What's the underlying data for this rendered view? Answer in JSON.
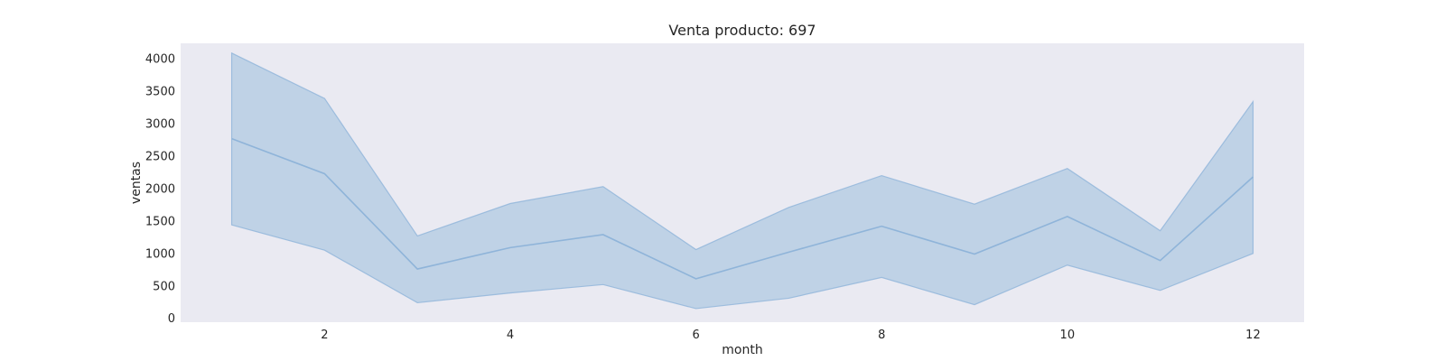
{
  "chart_data": {
    "type": "line",
    "title": "Venta producto: 697",
    "xlabel": "month",
    "ylabel": "ventas",
    "x": [
      1,
      2,
      3,
      4,
      5,
      6,
      7,
      8,
      9,
      10,
      11,
      12
    ],
    "series": [
      {
        "values": [
          2770,
          2230,
          760,
          1090,
          1290,
          610,
          1020,
          1420,
          990,
          1570,
          890,
          2180
        ],
        "upper": [
          4090,
          3390,
          1270,
          1770,
          2030,
          1060,
          1710,
          2200,
          1760,
          2310,
          1350,
          3340
        ],
        "lower": [
          1440,
          1050,
          240,
          390,
          520,
          150,
          310,
          630,
          210,
          820,
          430,
          1000
        ]
      }
    ],
    "xlim": [
      0.45,
      12.55
    ],
    "ylim": [
      -60,
      4240
    ],
    "xticks": [
      2,
      4,
      6,
      8,
      10,
      12
    ],
    "yticks": [
      0,
      500,
      1000,
      1500,
      2000,
      2500,
      3000,
      3500,
      4000
    ],
    "grid": false,
    "colors": {
      "plot_background": "#eaeaf2",
      "line": "#8fb4d9",
      "band_fill": "#b0c9e2",
      "text": "#262626"
    }
  }
}
